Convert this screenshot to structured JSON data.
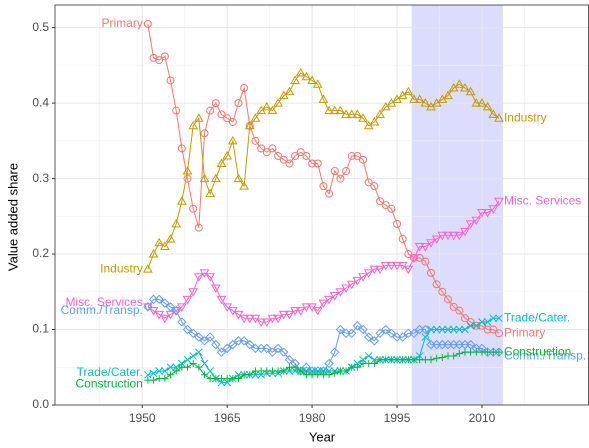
{
  "chart_data": {
    "type": "line",
    "x_label": "Year",
    "y_label": "Value added share",
    "x": [
      1951,
      1952,
      1953,
      1954,
      1955,
      1956,
      1957,
      1958,
      1959,
      1960,
      1961,
      1962,
      1963,
      1964,
      1965,
      1966,
      1967,
      1968,
      1969,
      1970,
      1971,
      1972,
      1973,
      1974,
      1975,
      1976,
      1977,
      1978,
      1979,
      1980,
      1981,
      1982,
      1983,
      1984,
      1985,
      1986,
      1987,
      1988,
      1989,
      1990,
      1991,
      1992,
      1993,
      1994,
      1995,
      1996,
      1997,
      1998,
      1999,
      2000,
      2001,
      2002,
      2003,
      2004,
      2005,
      2006,
      2007,
      2008,
      2009,
      2010,
      2011,
      2012,
      2013
    ],
    "xlim": [
      1934.6,
      2028.9
    ],
    "xticks": [
      1950,
      1965,
      1980,
      1995,
      2010
    ],
    "ylim": [
      0,
      0.53
    ],
    "yticks": [
      {
        "value": 0,
        "label": "0.0"
      },
      0.1,
      0.2,
      0.3,
      0.4,
      0.5
    ],
    "grid": true,
    "highlight_range": [
      1997.6,
      2013.7
    ],
    "highlight_color": "#dcdcfc",
    "series": [
      {
        "name": "Primary",
        "color": "#F8766D",
        "marker": "circle",
        "values": [
          0.505,
          0.46,
          0.457,
          0.462,
          0.43,
          0.39,
          0.34,
          0.3,
          0.26,
          0.235,
          0.36,
          0.39,
          0.4,
          0.385,
          0.38,
          0.375,
          0.4,
          0.42,
          0.37,
          0.35,
          0.34,
          0.335,
          0.34,
          0.33,
          0.325,
          0.32,
          0.33,
          0.335,
          0.33,
          0.32,
          0.32,
          0.29,
          0.28,
          0.31,
          0.3,
          0.31,
          0.33,
          0.33,
          0.325,
          0.295,
          0.29,
          0.27,
          0.265,
          0.26,
          0.24,
          0.22,
          0.2,
          0.195,
          0.195,
          0.19,
          0.175,
          0.16,
          0.15,
          0.14,
          0.13,
          0.125,
          0.115,
          0.11,
          0.105,
          0.105,
          0.1,
          0.1,
          0.095
        ]
      },
      {
        "name": "Industry",
        "color": "#C49A00",
        "marker": "triangle",
        "values": [
          0.18,
          0.2,
          0.215,
          0.21,
          0.22,
          0.24,
          0.27,
          0.31,
          0.37,
          0.38,
          0.3,
          0.28,
          0.3,
          0.32,
          0.33,
          0.35,
          0.3,
          0.29,
          0.37,
          0.38,
          0.39,
          0.395,
          0.39,
          0.4,
          0.41,
          0.415,
          0.43,
          0.44,
          0.435,
          0.43,
          0.425,
          0.405,
          0.39,
          0.39,
          0.39,
          0.385,
          0.385,
          0.385,
          0.38,
          0.37,
          0.375,
          0.385,
          0.395,
          0.4,
          0.405,
          0.41,
          0.415,
          0.405,
          0.405,
          0.4,
          0.395,
          0.4,
          0.405,
          0.41,
          0.42,
          0.425,
          0.42,
          0.415,
          0.4,
          0.4,
          0.395,
          0.385,
          0.38
        ]
      },
      {
        "name": "Misc. Services",
        "color": "#FF61CC",
        "marker": "triangle-down",
        "values": [
          0.13,
          0.125,
          0.12,
          0.115,
          0.12,
          0.125,
          0.13,
          0.14,
          0.15,
          0.17,
          0.175,
          0.17,
          0.155,
          0.14,
          0.13,
          0.125,
          0.12,
          0.115,
          0.115,
          0.115,
          0.11,
          0.11,
          0.115,
          0.115,
          0.12,
          0.12,
          0.125,
          0.125,
          0.13,
          0.13,
          0.125,
          0.135,
          0.14,
          0.145,
          0.15,
          0.155,
          0.16,
          0.165,
          0.17,
          0.175,
          0.18,
          0.18,
          0.185,
          0.185,
          0.185,
          0.185,
          0.18,
          0.195,
          0.21,
          0.21,
          0.215,
          0.22,
          0.225,
          0.225,
          0.225,
          0.225,
          0.23,
          0.24,
          0.245,
          0.255,
          0.255,
          0.26,
          0.27
        ]
      },
      {
        "name": "Comm./Transp.",
        "color": "#619CFF",
        "marker": "diamond",
        "values": [
          0.13,
          0.14,
          0.14,
          0.135,
          0.13,
          0.125,
          0.11,
          0.1,
          0.095,
          0.09,
          0.085,
          0.09,
          0.08,
          0.07,
          0.075,
          0.08,
          0.085,
          0.085,
          0.08,
          0.075,
          0.075,
          0.075,
          0.07,
          0.075,
          0.07,
          0.06,
          0.055,
          0.045,
          0.05,
          0.045,
          0.045,
          0.045,
          0.055,
          0.07,
          0.1,
          0.095,
          0.095,
          0.105,
          0.1,
          0.09,
          0.085,
          0.095,
          0.1,
          0.095,
          0.09,
          0.09,
          0.095,
          0.095,
          0.1,
          0.1,
          0.08,
          0.08,
          0.08,
          0.08,
          0.08,
          0.08,
          0.08,
          0.08,
          0.075,
          0.075,
          0.07,
          0.07,
          0.07
        ]
      },
      {
        "name": "Trade/Cater.",
        "color": "#00BFC4",
        "marker": "cross",
        "values": [
          0.04,
          0.042,
          0.045,
          0.045,
          0.05,
          0.05,
          0.055,
          0.06,
          0.065,
          0.07,
          0.055,
          0.045,
          0.035,
          0.03,
          0.03,
          0.035,
          0.04,
          0.04,
          0.04,
          0.04,
          0.04,
          0.042,
          0.042,
          0.042,
          0.045,
          0.045,
          0.045,
          0.045,
          0.045,
          0.045,
          0.045,
          0.045,
          0.045,
          0.045,
          0.045,
          0.045,
          0.05,
          0.055,
          0.06,
          0.065,
          0.06,
          0.06,
          0.06,
          0.06,
          0.06,
          0.06,
          0.06,
          0.06,
          0.065,
          0.09,
          0.1,
          0.1,
          0.1,
          0.1,
          0.1,
          0.1,
          0.1,
          0.105,
          0.105,
          0.11,
          0.11,
          0.115,
          0.115
        ]
      },
      {
        "name": "Construction",
        "color": "#00BA38",
        "marker": "plus",
        "values": [
          0.033,
          0.033,
          0.035,
          0.035,
          0.04,
          0.045,
          0.05,
          0.05,
          0.055,
          0.05,
          0.04,
          0.035,
          0.035,
          0.035,
          0.035,
          0.035,
          0.035,
          0.04,
          0.04,
          0.045,
          0.045,
          0.045,
          0.045,
          0.045,
          0.045,
          0.05,
          0.05,
          0.045,
          0.04,
          0.04,
          0.04,
          0.04,
          0.04,
          0.042,
          0.045,
          0.045,
          0.05,
          0.05,
          0.055,
          0.055,
          0.055,
          0.06,
          0.06,
          0.06,
          0.06,
          0.06,
          0.06,
          0.06,
          0.06,
          0.06,
          0.06,
          0.062,
          0.063,
          0.065,
          0.065,
          0.068,
          0.07,
          0.07,
          0.07,
          0.07,
          0.07,
          0.07,
          0.07
        ]
      }
    ]
  }
}
